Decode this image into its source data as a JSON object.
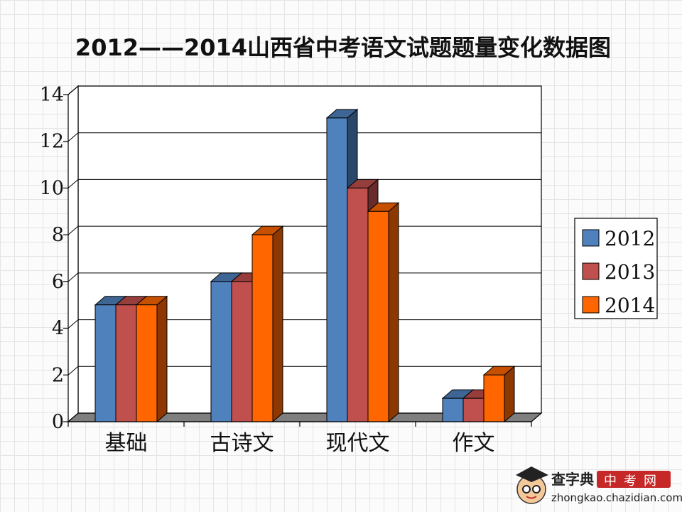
{
  "chart_data": {
    "type": "bar",
    "title": "2012——2014山西省中考语文试题题量变化数据图",
    "categories": [
      "基础",
      "古诗文",
      "现代文",
      "作文"
    ],
    "series": [
      {
        "name": "2012",
        "values": [
          5,
          6,
          13,
          1
        ],
        "color": "#4f81bd"
      },
      {
        "name": "2013",
        "values": [
          5,
          6,
          10,
          1
        ],
        "color": "#c0504d"
      },
      {
        "name": "2014",
        "values": [
          5,
          8,
          9,
          2
        ],
        "color": "#ff6600"
      }
    ],
    "ylim": [
      0,
      14
    ],
    "yticks": [
      "0",
      "2",
      "4",
      "6",
      "8",
      "10",
      "12",
      "14"
    ],
    "grid": true,
    "legend_position": "right",
    "three_d": true
  },
  "watermark": {
    "brand": "查字典",
    "site_cn": "中考网",
    "url": "zhongkao.chazidian.com"
  }
}
